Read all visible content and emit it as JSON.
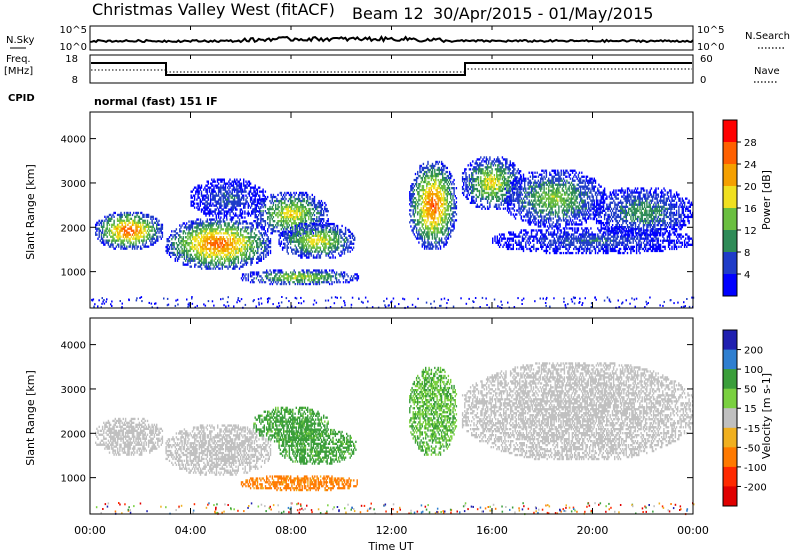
{
  "header": {
    "title": "Christmas Valley West (fitACF)",
    "beam": "Beam 12",
    "dates": "30/Apr/2015 - 01/May/2015"
  },
  "panels": {
    "nsky": {
      "label": "N.Sky",
      "ticks": [
        "10^5",
        "10^0"
      ]
    },
    "nsearch": {
      "label": "N.Search",
      "ticks": [
        "10^5",
        "10^0"
      ]
    },
    "freq": {
      "label_line1": "Freq.",
      "label_line2": "[MHz]",
      "ticks": [
        "18",
        "8"
      ]
    },
    "nave": {
      "label": "Nave",
      "ticks": [
        "60",
        "0"
      ]
    },
    "cpid": {
      "label": "CPID",
      "value": "normal (fast) 151 IF"
    }
  },
  "x_axis": {
    "label": "Time UT",
    "ticks": [
      "00:00",
      "04:00",
      "08:00",
      "12:00",
      "16:00",
      "20:00",
      "00:00"
    ]
  },
  "chart_data": [
    {
      "type": "heatmap",
      "ylabel": "Slant Range [km]",
      "xlabel": "Time UT",
      "xlim": [
        0,
        24
      ],
      "ylim": [
        180,
        4600
      ],
      "yticks": [
        1000,
        2000,
        3000,
        4000
      ],
      "colorbar": {
        "label": "Power [dB]",
        "ticks": [
          "28",
          "24",
          "20",
          "16",
          "12",
          "8",
          "4"
        ],
        "colors": [
          "#0000ff",
          "#1f3cc8",
          "#2e8b57",
          "#6abf40",
          "#f0e020",
          "#f5a000",
          "#ff6000",
          "#ff0000"
        ]
      },
      "echo_regions": [
        {
          "t": [
            0.2,
            2.9
          ],
          "range": [
            1500,
            2350
          ],
          "peak_db": 28
        },
        {
          "t": [
            3.0,
            7.2
          ],
          "range": [
            1050,
            2200
          ],
          "peak_db": 28
        },
        {
          "t": [
            4.0,
            7.0
          ],
          "range": [
            2200,
            3100
          ],
          "peak_db": 8
        },
        {
          "t": [
            6.5,
            9.5
          ],
          "range": [
            1800,
            2800
          ],
          "peak_db": 20
        },
        {
          "t": [
            6.0,
            10.7
          ],
          "range": [
            700,
            1050
          ],
          "peak_db": 18
        },
        {
          "t": [
            7.5,
            10.6
          ],
          "range": [
            1300,
            2100
          ],
          "peak_db": 20
        },
        {
          "t": [
            12.7,
            14.6
          ],
          "range": [
            1500,
            3500
          ],
          "peak_db": 28
        },
        {
          "t": [
            14.8,
            17.2
          ],
          "range": [
            2400,
            3600
          ],
          "peak_db": 20
        },
        {
          "t": [
            16.5,
            20.5
          ],
          "range": [
            2000,
            3300
          ],
          "peak_db": 16
        },
        {
          "t": [
            16.0,
            24.0
          ],
          "range": [
            1400,
            2000
          ],
          "peak_db": 8
        },
        {
          "t": [
            20.0,
            24.0
          ],
          "range": [
            1800,
            2900
          ],
          "peak_db": 12
        }
      ]
    },
    {
      "type": "heatmap",
      "ylabel": "Slant Range [km]",
      "xlabel": "Time UT",
      "xlim": [
        0,
        24
      ],
      "ylim": [
        180,
        4600
      ],
      "yticks": [
        1000,
        2000,
        3000,
        4000
      ],
      "colorbar": {
        "label": "Velocity [m s-1]",
        "ticks": [
          "200",
          "100",
          "50",
          "15",
          "-15",
          "-50",
          "-100",
          "-200"
        ],
        "colors": [
          "#2020b0",
          "#2f7fd0",
          "#3a9e3a",
          "#7ad040",
          "#c0c0c0",
          "#f0b020",
          "#ff7a00",
          "#ff2a00",
          "#e00000"
        ]
      },
      "echo_regions": [
        {
          "t": [
            0.2,
            2.9
          ],
          "range": [
            1500,
            2350
          ],
          "velocity": 0
        },
        {
          "t": [
            3.0,
            7.2
          ],
          "range": [
            1050,
            2200
          ],
          "velocity": 0
        },
        {
          "t": [
            6.5,
            9.5
          ],
          "range": [
            1800,
            2600
          ],
          "velocity": 40
        },
        {
          "t": [
            7.5,
            10.6
          ],
          "range": [
            1300,
            2100
          ],
          "velocity": 40
        },
        {
          "t": [
            6.0,
            10.7
          ],
          "range": [
            700,
            1050
          ],
          "velocity": -40
        },
        {
          "t": [
            12.7,
            14.6
          ],
          "range": [
            1500,
            3500
          ],
          "velocity": 30
        },
        {
          "t": [
            14.8,
            24.0
          ],
          "range": [
            1400,
            3600
          ],
          "velocity": 0
        }
      ]
    }
  ]
}
